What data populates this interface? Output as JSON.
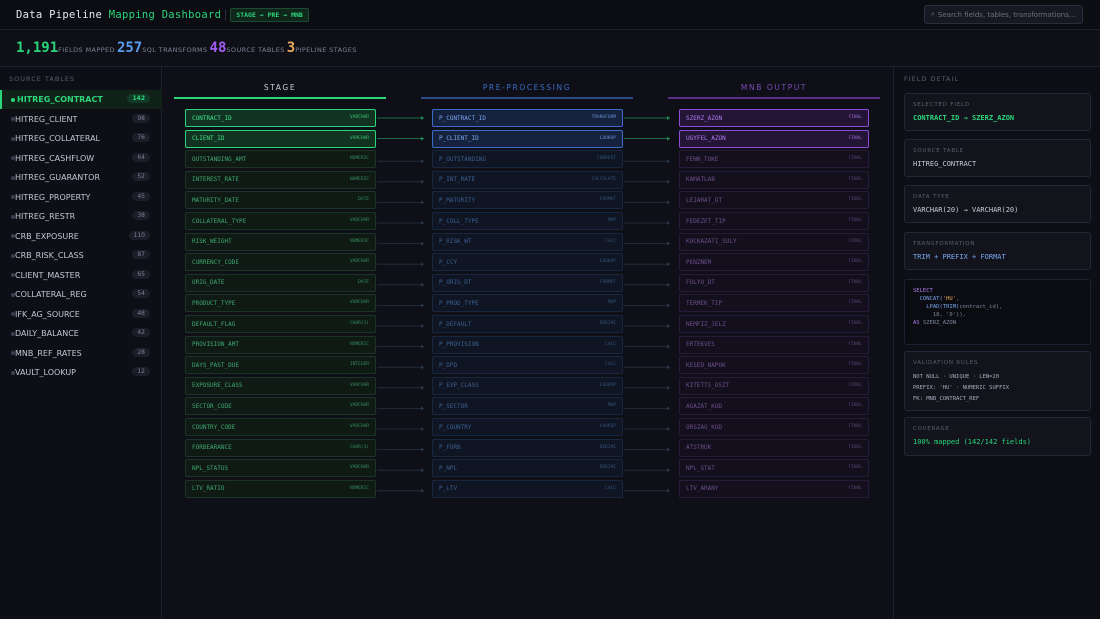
{
  "header": {
    "title_prefix": "Data Pipeline",
    "title_highlight": "Mapping Dashboard",
    "flow_badge": "STAGE → PRE → MNB",
    "search_placeholder": "Search fields, tables, transformations...",
    "search_icon": "search-icon"
  },
  "stats": [
    {
      "value": "1,191",
      "label": "FIELDS MAPPED",
      "color": "#2bd67b"
    },
    {
      "value": "257",
      "label": "SQL TRANSFORMS",
      "color": "#5b9cf0"
    },
    {
      "value": "48",
      "label": "SOURCE TABLES",
      "color": "#a15cf2"
    },
    {
      "value": "3",
      "label": "PIPELINE STAGES",
      "color": "#e8a85a"
    }
  ],
  "sources": {
    "title": "SOURCE TABLES",
    "items": [
      {
        "name": "HITREG_CONTRACT",
        "count": "142",
        "active": true
      },
      {
        "name": "HITREG_CLIENT",
        "count": "98"
      },
      {
        "name": "HITREG_COLLATERAL",
        "count": "76"
      },
      {
        "name": "HITREG_CASHFLOW",
        "count": "64"
      },
      {
        "name": "HITREG_GUARANTOR",
        "count": "52"
      },
      {
        "name": "HITREG_PROPERTY",
        "count": "45"
      },
      {
        "name": "HITREG_RESTR",
        "count": "38"
      },
      {
        "name": "CRB_EXPOSURE",
        "count": "110"
      },
      {
        "name": "CRB_RISK_CLASS",
        "count": "87"
      },
      {
        "name": "CLIENT_MASTER",
        "count": "65"
      },
      {
        "name": "COLLATERAL_REG",
        "count": "54"
      },
      {
        "name": "IFK_AG_SOURCE",
        "count": "48"
      },
      {
        "name": "DAILY_BALANCE",
        "count": "42"
      },
      {
        "name": "MNB_REF_RATES",
        "count": "28"
      },
      {
        "name": "VAULT_LOOKUP",
        "count": "12"
      }
    ]
  },
  "columns": {
    "stage": "STAGE",
    "pre": "PRE-PROCESSING",
    "mnb": "MNB OUTPUT"
  },
  "colors": {
    "stage": "#2bd67b",
    "pre": "#3c6bc8",
    "mnb": "#8d4cd6"
  },
  "rows": [
    {
      "stage": "CONTRACT_ID",
      "stage_type": "VARCHAR",
      "pre": "P_CONTRACT_ID",
      "pre_type": "TRANSFORM",
      "mnb": "SZERZ_AZON",
      "mnb_type": "FINAL",
      "selected": true
    },
    {
      "stage": "CLIENT_ID",
      "stage_type": "VARCHAR",
      "pre": "P_CLIENT_ID",
      "pre_type": "LOOKUP",
      "mnb": "UGYFEL_AZON",
      "mnb_type": "FINAL",
      "selected": true
    },
    {
      "stage": "OUTSTANDING_AMT",
      "stage_type": "NUMERIC",
      "pre": "P_OUTSTANDING",
      "pre_type": "CONVERT",
      "mnb": "FENN_TOKE",
      "mnb_type": "FINAL"
    },
    {
      "stage": "INTEREST_RATE",
      "stage_type": "NUMERIC",
      "pre": "P_INT_RATE",
      "pre_type": "CALCULATE",
      "mnb": "KAMATLAB",
      "mnb_type": "FINAL"
    },
    {
      "stage": "MATURITY_DATE",
      "stage_type": "DATE",
      "pre": "P_MATURITY",
      "pre_type": "FORMAT",
      "mnb": "LEJARAT_DT",
      "mnb_type": "FINAL"
    },
    {
      "stage": "COLLATERAL_TYPE",
      "stage_type": "VARCHAR",
      "pre": "P_COLL_TYPE",
      "pre_type": "MAP",
      "mnb": "FEDEZET_TIP",
      "mnb_type": "FINAL"
    },
    {
      "stage": "RISK_WEIGHT",
      "stage_type": "NUMERIC",
      "pre": "P_RISK_WT",
      "pre_type": "CALC",
      "mnb": "KOCKAZATI_SULY",
      "mnb_type": "FINAL"
    },
    {
      "stage": "CURRENCY_CODE",
      "stage_type": "VARCHAR",
      "pre": "P_CCY",
      "pre_type": "LOOKUP",
      "mnb": "PENZNEM",
      "mnb_type": "FINAL"
    },
    {
      "stage": "ORIG_DATE",
      "stage_type": "DATE",
      "pre": "P_ORIG_DT",
      "pre_type": "FORMAT",
      "mnb": "FOLYO_DT",
      "mnb_type": "FINAL"
    },
    {
      "stage": "PRODUCT_TYPE",
      "stage_type": "VARCHAR",
      "pre": "P_PROD_TYPE",
      "pre_type": "MAP",
      "mnb": "TERMEK_TIP",
      "mnb_type": "FINAL"
    },
    {
      "stage": "DEFAULT_FLAG",
      "stage_type": "CHAR(1)",
      "pre": "P_DEFAULT",
      "pre_type": "DERIVE",
      "mnb": "NEMFIZ_JELZ",
      "mnb_type": "FINAL"
    },
    {
      "stage": "PROVISION_AMT",
      "stage_type": "NUMERIC",
      "pre": "P_PROVISION",
      "pre_type": "CALC",
      "mnb": "ERTEKVES",
      "mnb_type": "FINAL"
    },
    {
      "stage": "DAYS_PAST_DUE",
      "stage_type": "INTEGER",
      "pre": "P_DPD",
      "pre_type": "CALC",
      "mnb": "KESED_NAPOK",
      "mnb_type": "FINAL"
    },
    {
      "stage": "EXPOSURE_CLASS",
      "stage_type": "VARCHAR",
      "pre": "P_EXP_CLASS",
      "pre_type": "LOOKUP",
      "mnb": "KITETTS_OSZT",
      "mnb_type": "FINAL"
    },
    {
      "stage": "SECTOR_CODE",
      "stage_type": "VARCHAR",
      "pre": "P_SECTOR",
      "pre_type": "MAP",
      "mnb": "AGAZAT_KOD",
      "mnb_type": "FINAL"
    },
    {
      "stage": "COUNTRY_CODE",
      "stage_type": "VARCHAR",
      "pre": "P_COUNTRY",
      "pre_type": "LOOKUP",
      "mnb": "ORSZAG_KOD",
      "mnb_type": "FINAL"
    },
    {
      "stage": "FORBEARANCE",
      "stage_type": "CHAR(1)",
      "pre": "P_FORB",
      "pre_type": "DERIVE",
      "mnb": "ATSTRUK",
      "mnb_type": "FINAL"
    },
    {
      "stage": "NPL_STATUS",
      "stage_type": "VARCHAR",
      "pre": "P_NPL",
      "pre_type": "DERIVE",
      "mnb": "NPL_STAT",
      "mnb_type": "FINAL"
    },
    {
      "stage": "LTV_RATIO",
      "stage_type": "NUMERIC",
      "pre": "P_LTV",
      "pre_type": "CALC",
      "mnb": "LTV_ARANY",
      "mnb_type": "FINAL"
    }
  ],
  "detail": {
    "title": "FIELD DETAIL",
    "selected_field": {
      "label": "SELECTED FIELD",
      "value": "CONTRACT_ID → SZERZ_AZON"
    },
    "source_table": {
      "label": "SOURCE TABLE",
      "value": "HITREG_CONTRACT"
    },
    "data_type": {
      "label": "DATA TYPE",
      "value": "VARCHAR(20) → VARCHAR(20)"
    },
    "transformation": {
      "label": "TRANSFORMATION",
      "value": "TRIM + PREFIX + FORMAT"
    },
    "sql": {
      "l1": "SELECT",
      "l2a": "CONCAT(",
      "l2b": "'HU'",
      ",": ",",
      "l3a": "LPAD(",
      "l3b": "TRIM(",
      "l3c": "contract_id),",
      "l4": "18, '0')),",
      "l5a": "AS",
      "l5b": "SZERZ_AZON"
    },
    "validation": {
      "label": "VALIDATION RULES",
      "r1": "NOT NULL · UNIQUE · LEN=20",
      "r2": "PREFIX: 'HU' · NUMERIC SUFFIX",
      "r3": "FK: MNB_CONTRACT_REF"
    },
    "coverage": {
      "label": "COVERAGE",
      "value": "100% mapped (142/142 fields)"
    }
  }
}
